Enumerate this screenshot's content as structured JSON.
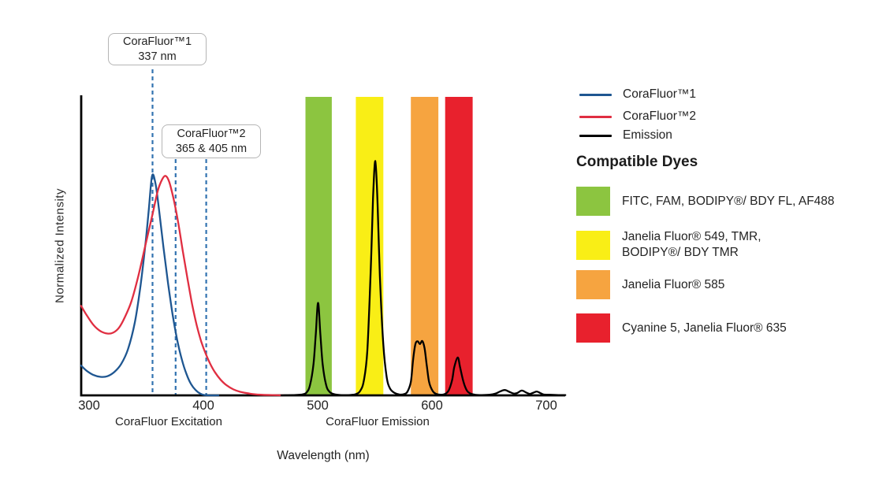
{
  "figure": {
    "background": "#ffffff"
  },
  "chart_data": {
    "type": "line",
    "title": "",
    "xlabel": "Wavelength (nm)",
    "ylabel": "Normalized Intensity",
    "x_ticks": [
      "300",
      "400",
      "500",
      "600",
      "700"
    ],
    "x_tick_values_nm": [
      300,
      400,
      500,
      600,
      700
    ],
    "xlim_nm": [
      293,
      716
    ],
    "ylim": [
      0,
      1
    ],
    "grid": false,
    "section_labels": {
      "excitation": "CoraFluor Excitation",
      "emission": "CoraFluor Emission"
    },
    "legend": {
      "position": "right",
      "entries": [
        "CoraFluor™1",
        "CoraFluor™2",
        "Emission"
      ]
    },
    "marker_line_color": "#3273b0",
    "markers": [
      {
        "title": "CoraFluor™1",
        "value": "337 nm",
        "lines_nm": [
          355.4
        ]
      },
      {
        "title": "CoraFluor™2",
        "value": "365 & 405 nm",
        "lines_nm": [
          375.6,
          402.3
        ]
      }
    ],
    "bands": [
      {
        "label": "FITC, FAM, BODIPY®/ BDY FL, AF488",
        "color": "#8cc540",
        "from_nm": 489,
        "to_nm": 512
      },
      {
        "label": "Janelia Fluor® 549, TMR, BODIPY®/ BDY TMR",
        "color": "#f9ee16",
        "from_nm": 533,
        "to_nm": 557
      },
      {
        "label": "Janelia Fluor® 585",
        "color": "#f6a440",
        "from_nm": 581,
        "to_nm": 605
      },
      {
        "label": "Cyanine 5, Janelia Fluor® 635",
        "color": "#e8212d",
        "from_nm": 611,
        "to_nm": 635
      }
    ],
    "series": [
      {
        "name": "CoraFluor™1",
        "role": "excitation",
        "color": "#1e5691",
        "peak_nm": 355,
        "points": [
          [
            293,
            0.1
          ],
          [
            298,
            0.082
          ],
          [
            304,
            0.068
          ],
          [
            310,
            0.062
          ],
          [
            316,
            0.064
          ],
          [
            322,
            0.078
          ],
          [
            328,
            0.105
          ],
          [
            334,
            0.155
          ],
          [
            340,
            0.245
          ],
          [
            345,
            0.37
          ],
          [
            349,
            0.5
          ],
          [
            352,
            0.615
          ],
          [
            355,
            0.735
          ],
          [
            358,
            0.71
          ],
          [
            361,
            0.625
          ],
          [
            365,
            0.495
          ],
          [
            369,
            0.375
          ],
          [
            373,
            0.27
          ],
          [
            377,
            0.185
          ],
          [
            381,
            0.12
          ],
          [
            385,
            0.072
          ],
          [
            389,
            0.038
          ],
          [
            393,
            0.018
          ],
          [
            397,
            0.006
          ],
          [
            401,
            0.001
          ],
          [
            406,
            0
          ],
          [
            413,
            0
          ]
        ]
      },
      {
        "name": "CoraFluor™2",
        "role": "excitation",
        "color": "#e02e41",
        "peak_nm": 367,
        "points": [
          [
            293,
            0.3
          ],
          [
            298,
            0.268
          ],
          [
            304,
            0.235
          ],
          [
            310,
            0.215
          ],
          [
            316,
            0.207
          ],
          [
            321,
            0.21
          ],
          [
            326,
            0.226
          ],
          [
            331,
            0.26
          ],
          [
            337,
            0.315
          ],
          [
            343,
            0.4
          ],
          [
            349,
            0.5
          ],
          [
            355,
            0.6
          ],
          [
            360,
            0.685
          ],
          [
            364,
            0.725
          ],
          [
            367,
            0.735
          ],
          [
            370,
            0.715
          ],
          [
            374,
            0.655
          ],
          [
            378,
            0.575
          ],
          [
            382,
            0.48
          ],
          [
            386,
            0.39
          ],
          [
            390,
            0.305
          ],
          [
            394,
            0.235
          ],
          [
            398,
            0.18
          ],
          [
            402,
            0.138
          ],
          [
            406,
            0.104
          ],
          [
            410,
            0.077
          ],
          [
            415,
            0.052
          ],
          [
            420,
            0.034
          ],
          [
            426,
            0.02
          ],
          [
            432,
            0.012
          ],
          [
            440,
            0.006
          ],
          [
            450,
            0.002
          ],
          [
            460,
            0.001
          ],
          [
            470,
            0
          ]
        ]
      },
      {
        "name": "Emission",
        "role": "emission",
        "color": "#000000",
        "peaks_nm": [
          500,
          550,
          590,
          622,
          663,
          678,
          691
        ],
        "points": [
          [
            468,
            0
          ],
          [
            478,
            0.001
          ],
          [
            486,
            0.003
          ],
          [
            490,
            0.01
          ],
          [
            493,
            0.035
          ],
          [
            496,
            0.105
          ],
          [
            498,
            0.205
          ],
          [
            500,
            0.31
          ],
          [
            502,
            0.205
          ],
          [
            504,
            0.105
          ],
          [
            507,
            0.035
          ],
          [
            510,
            0.012
          ],
          [
            514,
            0.004
          ],
          [
            520,
            0.001
          ],
          [
            527,
            0.001
          ],
          [
            533,
            0.004
          ],
          [
            537,
            0.016
          ],
          [
            540,
            0.05
          ],
          [
            543,
            0.15
          ],
          [
            546,
            0.42
          ],
          [
            548,
            0.66
          ],
          [
            550,
            0.785
          ],
          [
            552,
            0.64
          ],
          [
            554,
            0.4
          ],
          [
            557,
            0.17
          ],
          [
            560,
            0.06
          ],
          [
            563,
            0.022
          ],
          [
            567,
            0.008
          ],
          [
            571,
            0.003
          ],
          [
            575,
            0.004
          ],
          [
            578,
            0.012
          ],
          [
            581,
            0.045
          ],
          [
            583,
            0.12
          ],
          [
            585,
            0.172
          ],
          [
            587,
            0.181
          ],
          [
            589,
            0.172
          ],
          [
            591,
            0.182
          ],
          [
            593,
            0.158
          ],
          [
            595,
            0.098
          ],
          [
            597,
            0.044
          ],
          [
            600,
            0.015
          ],
          [
            603,
            0.005
          ],
          [
            607,
            0.002
          ],
          [
            611,
            0.005
          ],
          [
            614,
            0.016
          ],
          [
            617,
            0.05
          ],
          [
            619,
            0.095
          ],
          [
            622,
            0.127
          ],
          [
            624,
            0.095
          ],
          [
            627,
            0.045
          ],
          [
            630,
            0.016
          ],
          [
            633,
            0.006
          ],
          [
            637,
            0.002
          ],
          [
            643,
            0.001
          ],
          [
            650,
            0.002
          ],
          [
            655,
            0.006
          ],
          [
            659,
            0.013
          ],
          [
            663,
            0.018
          ],
          [
            667,
            0.012
          ],
          [
            671,
            0.006
          ],
          [
            674,
            0.008
          ],
          [
            678,
            0.016
          ],
          [
            682,
            0.009
          ],
          [
            685,
            0.005
          ],
          [
            688,
            0.009
          ],
          [
            691,
            0.013
          ],
          [
            694,
            0.008
          ],
          [
            697,
            0.003
          ],
          [
            702,
            0.002
          ],
          [
            710,
            0.001
          ],
          [
            716,
            0.001
          ]
        ]
      }
    ]
  },
  "compatible_dyes": {
    "heading": "Compatible Dyes",
    "items": [
      {
        "color": "#8cc540",
        "label": "FITC, FAM, BODIPY®/ BDY FL, AF488"
      },
      {
        "color": "#f9ee16",
        "label": "Janelia Fluor® 549, TMR,\nBODIPY®/ BDY TMR"
      },
      {
        "color": "#f6a440",
        "label": "Janelia Fluor® 585"
      },
      {
        "color": "#e8212d",
        "label": "Cyanine 5, Janelia Fluor® 635"
      }
    ]
  }
}
